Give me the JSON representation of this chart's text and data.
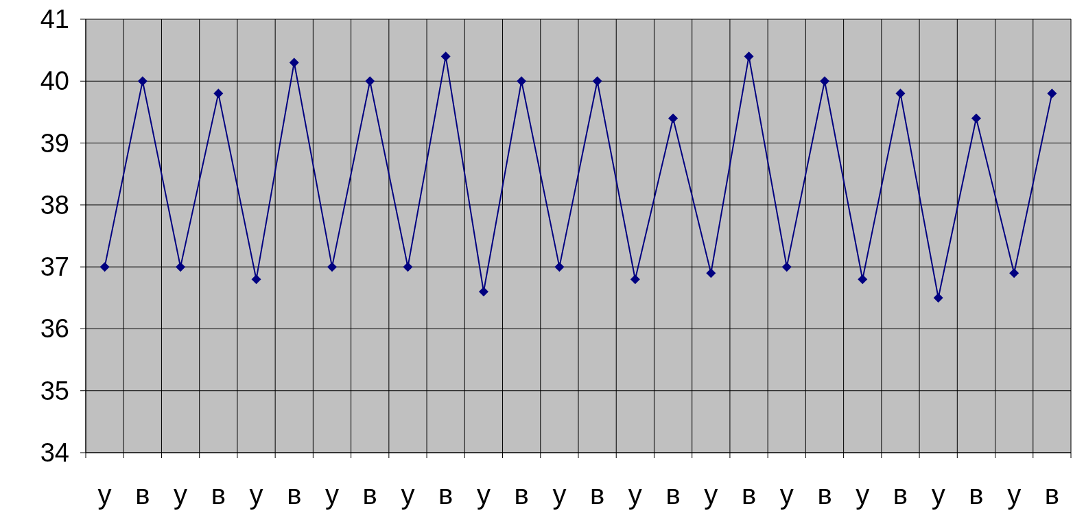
{
  "chart_data": {
    "type": "line",
    "categories": [
      "у",
      "в",
      "у",
      "в",
      "у",
      "в",
      "у",
      "в",
      "у",
      "в",
      "у",
      "в",
      "у",
      "в",
      "у",
      "в",
      "у",
      "в",
      "у",
      "в",
      "у",
      "в",
      "у",
      "в",
      "у",
      "в"
    ],
    "series": [
      {
        "color": "#000080",
        "values": [
          37,
          40,
          37,
          39.8,
          36.8,
          40.3,
          37,
          40,
          37,
          40.4,
          36.6,
          40,
          37,
          40,
          36.8,
          39.4,
          36.9,
          40.4,
          37,
          40,
          36.8,
          39.8,
          36.5,
          39.4,
          36.9,
          39.8
        ]
      }
    ],
    "ylim": [
      34,
      41
    ],
    "yticks": [
      34,
      35,
      36,
      37,
      38,
      39,
      40,
      41
    ],
    "grid": true,
    "marker": "diamond",
    "line_style": "solid"
  }
}
